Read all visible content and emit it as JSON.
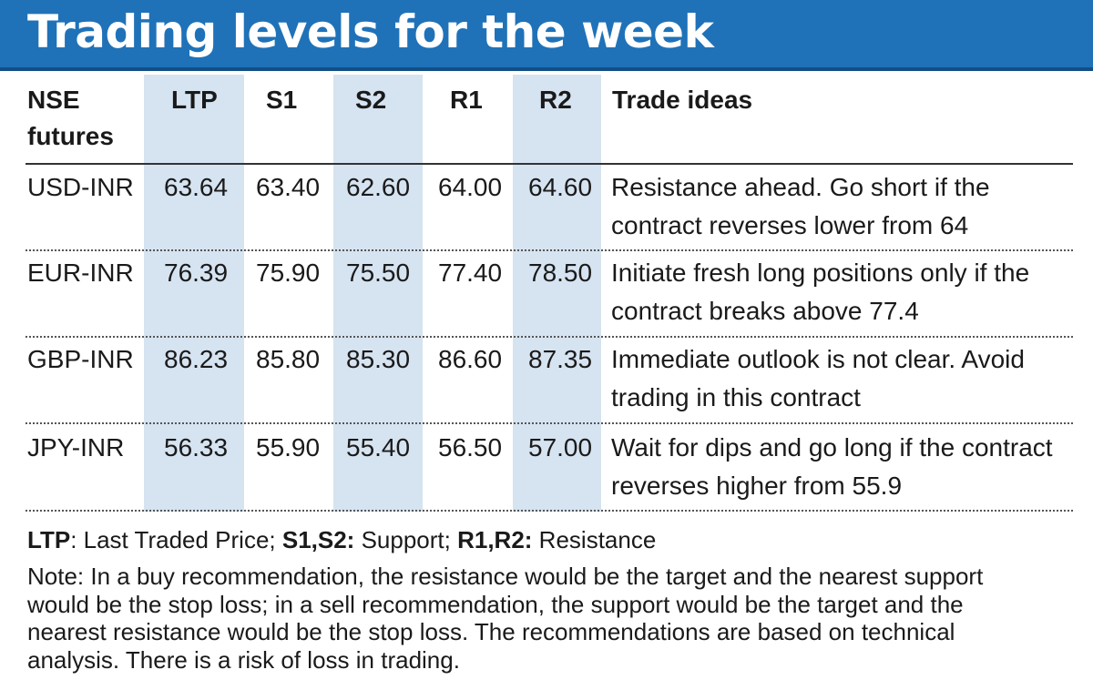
{
  "title": "Trading levels for the week",
  "colors": {
    "title_bg": "#1f72b8",
    "title_text": "#ffffff",
    "column_shade": "#d6e3f1"
  },
  "chart_data": {
    "type": "table",
    "columns": [
      "NSE futures",
      "LTP",
      "S1",
      "S2",
      "R1",
      "R2",
      "Trade ideas"
    ],
    "shaded_columns": [
      "LTP",
      "S2",
      "R2"
    ],
    "rows": [
      {
        "contract": "USD-INR",
        "ltp": "63.64",
        "s1": "63.40",
        "s2": "62.60",
        "r1": "64.00",
        "r2": "64.60",
        "idea": "Resistance ahead. Go short if the contract reverses lower from 64"
      },
      {
        "contract": "EUR-INR",
        "ltp": "76.39",
        "s1": "75.90",
        "s2": "75.50",
        "r1": "77.40",
        "r2": "78.50",
        "idea": "Initiate fresh long positions only if the contract breaks above 77.4"
      },
      {
        "contract": "GBP-INR",
        "ltp": "86.23",
        "s1": "85.80",
        "s2": "85.30",
        "r1": "86.60",
        "r2": "87.35",
        "idea": "Immediate outlook is not clear. Avoid trading in this contract"
      },
      {
        "contract": "JPY-INR",
        "ltp": "56.33",
        "s1": "55.90",
        "s2": "55.40",
        "r1": "56.50",
        "r2": "57.00",
        "idea": "Wait for dips and go long if the contract reverses higher from 55.9"
      }
    ]
  },
  "header": {
    "nse": "NSE",
    "futures": "futures",
    "ltp": "LTP",
    "s1": "S1",
    "s2": "S2",
    "r1": "R1",
    "r2": "R2",
    "ideas": "Trade ideas"
  },
  "legend": {
    "ltp_key": "LTP",
    "ltp_text": ": Last Traded Price; ",
    "s_key": "S1,S2:",
    "s_text": " Support; ",
    "r_key": "R1,R2:",
    "r_text": " Resistance"
  },
  "note": "Note: In a buy recommendation, the resistance would be the target and the nearest support would be the stop loss; in a sell recommendation, the support would be the target and the nearest resistance would be the stop loss. The recommendations are based on technical analysis. There is a risk of loss in trading."
}
